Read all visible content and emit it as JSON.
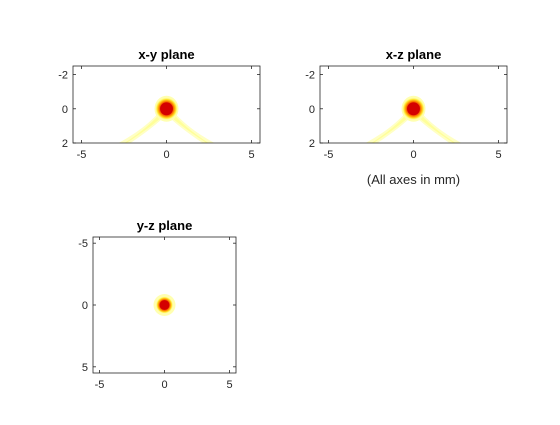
{
  "chart_data": [
    {
      "type": "heatmap",
      "title": "x-y plane",
      "xlabel": "",
      "ylabel": "",
      "xlim": [
        -5.5,
        5.5
      ],
      "ylim": [
        2,
        -2.5
      ],
      "y_reversed": true,
      "x_ticks": [
        -5,
        0,
        5
      ],
      "x_tick_labels": [
        "-5",
        "0",
        "5"
      ],
      "y_ticks": [
        -2,
        0,
        2
      ],
      "y_tick_labels": [
        "-2",
        "0",
        "2"
      ],
      "grid": false,
      "spot": {
        "x": 0,
        "y": 0,
        "radius": 0.55
      },
      "has_beam_tails": true,
      "colormap": [
        "#ffffff",
        "#ffffc8",
        "#ffff40",
        "#ff9900",
        "#cc0000"
      ]
    },
    {
      "type": "heatmap",
      "title": "x-z plane",
      "xlabel": "(All axes in mm)",
      "ylabel": "",
      "xlim": [
        -5.5,
        5.5
      ],
      "ylim": [
        2,
        -2.5
      ],
      "y_reversed": true,
      "x_ticks": [
        -5,
        0,
        5
      ],
      "x_tick_labels": [
        "-5",
        "0",
        "5"
      ],
      "y_ticks": [
        -2,
        0,
        2
      ],
      "y_tick_labels": [
        "-2",
        "0",
        "2"
      ],
      "grid": false,
      "spot": {
        "x": 0,
        "y": 0,
        "radius": 0.55
      },
      "has_beam_tails": true,
      "colormap": [
        "#ffffff",
        "#ffffc8",
        "#ffff40",
        "#ff9900",
        "#cc0000"
      ]
    },
    {
      "type": "heatmap",
      "title": "y-z plane",
      "xlabel": "",
      "ylabel": "",
      "xlim": [
        -5.5,
        5.5
      ],
      "ylim": [
        5.5,
        -5.5
      ],
      "y_reversed": true,
      "x_ticks": [
        -5,
        0,
        5
      ],
      "x_tick_labels": [
        "-5",
        "0",
        "5"
      ],
      "y_ticks": [
        -5,
        0,
        5
      ],
      "y_tick_labels": [
        "-5",
        "0",
        "5"
      ],
      "grid": false,
      "spot": {
        "x": 0,
        "y": 0,
        "radius": 0.55
      },
      "has_beam_tails": false,
      "colormap": [
        "#ffffff",
        "#ffffc8",
        "#ffff40",
        "#ff9900",
        "#cc0000"
      ]
    }
  ]
}
